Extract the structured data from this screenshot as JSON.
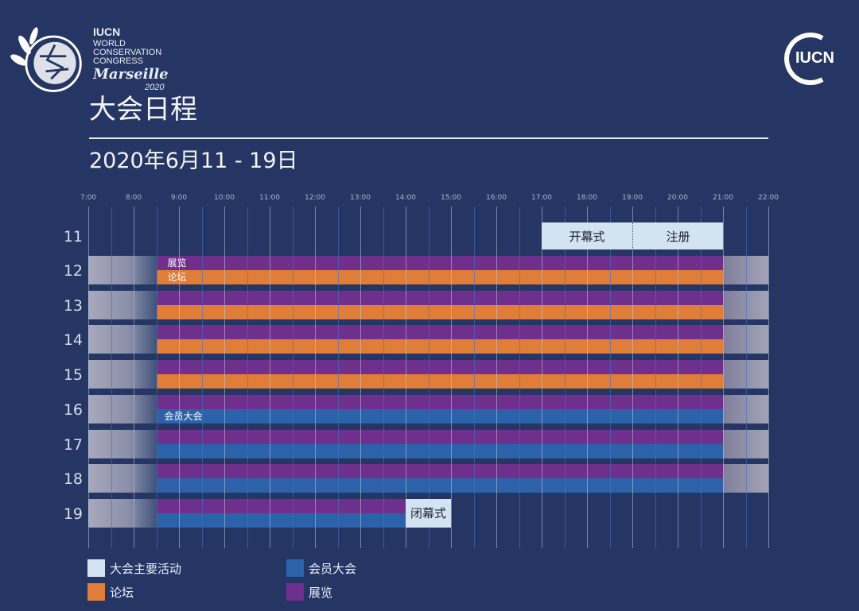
{
  "logo": {
    "brand": "IUCN",
    "line1": "WORLD",
    "line2": "CONSERVATION",
    "line3": "CONGRESS",
    "city": "Marseille",
    "year": "2020"
  },
  "corner_logo": "IUCN",
  "title": "大会日程",
  "dates": "2020年6月11 - 19日",
  "colors": {
    "background": "#263664",
    "purple": "#6f2f8c",
    "orange": "#e07d38",
    "blue": "#2b62aa",
    "light": "#d3e3f1"
  },
  "hours": [
    "7:00",
    "8:00",
    "9:00",
    "10:00",
    "11:00",
    "12:00",
    "13:00",
    "14:00",
    "15:00",
    "16:00",
    "17:00",
    "18:00",
    "19:00",
    "20:00",
    "21:00",
    "22:00"
  ],
  "days": [
    "11",
    "12",
    "13",
    "14",
    "15",
    "16",
    "17",
    "18",
    "19"
  ],
  "events": {
    "opening": "开幕式",
    "registration": "注册",
    "exhibition": "展览",
    "forum": "论坛",
    "members_assembly": "会员大会",
    "closing": "闭幕式"
  },
  "legend": [
    {
      "label": "大会主要活动",
      "color": "#d3e3f1"
    },
    {
      "label": "会员大会",
      "color": "#2b62aa"
    },
    {
      "label": "论坛",
      "color": "#e07d38"
    },
    {
      "label": "展览",
      "color": "#6f2f8c"
    }
  ]
}
